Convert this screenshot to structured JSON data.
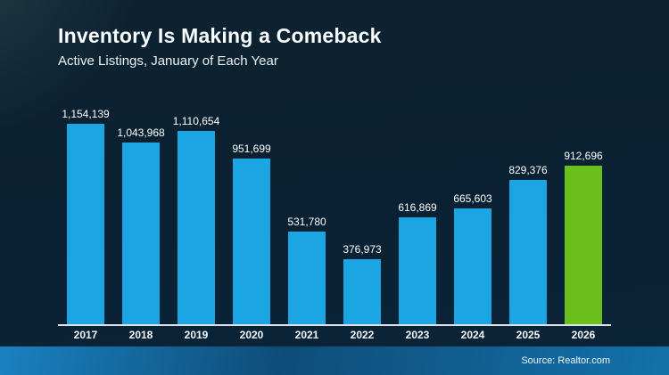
{
  "header": {
    "title": "Inventory Is Making a Comeback",
    "subtitle": "Active Listings, January of Each Year"
  },
  "footer": {
    "source": "Source: Realtor.com"
  },
  "colors": {
    "background": "#0a2133",
    "bar": "#1ba6e3",
    "highlight_bar": "#6abf1d",
    "axis_line": "#dde3e7",
    "text": "#ffffff",
    "footer_band_left": "#1a81c0",
    "footer_band_mid": "#0e4d79",
    "footer_band_right": "#1371aa"
  },
  "chart_data": {
    "type": "bar",
    "title": "Inventory Is Making a Comeback",
    "subtitle": "Active Listings, January of Each Year",
    "xlabel": "",
    "ylabel": "Active Listings",
    "categories": [
      "2017",
      "2018",
      "2019",
      "2020",
      "2021",
      "2022",
      "2023",
      "2024",
      "2025",
      "2026"
    ],
    "values": [
      1154139,
      1043968,
      1110654,
      951699,
      531780,
      376973,
      616869,
      665603,
      829376,
      912696
    ],
    "value_labels": [
      "1,154,139",
      "1,043,968",
      "1,110,654",
      "951,699",
      "531,780",
      "376,973",
      "616,869",
      "665,603",
      "829,376",
      "912,696"
    ],
    "ylim": [
      0,
      1154139
    ],
    "grid": false,
    "legend": false,
    "bar_color": "#1ba6e3",
    "highlight_category": "2026",
    "highlight_color": "#6abf1d",
    "source": "Source: Realtor.com"
  }
}
